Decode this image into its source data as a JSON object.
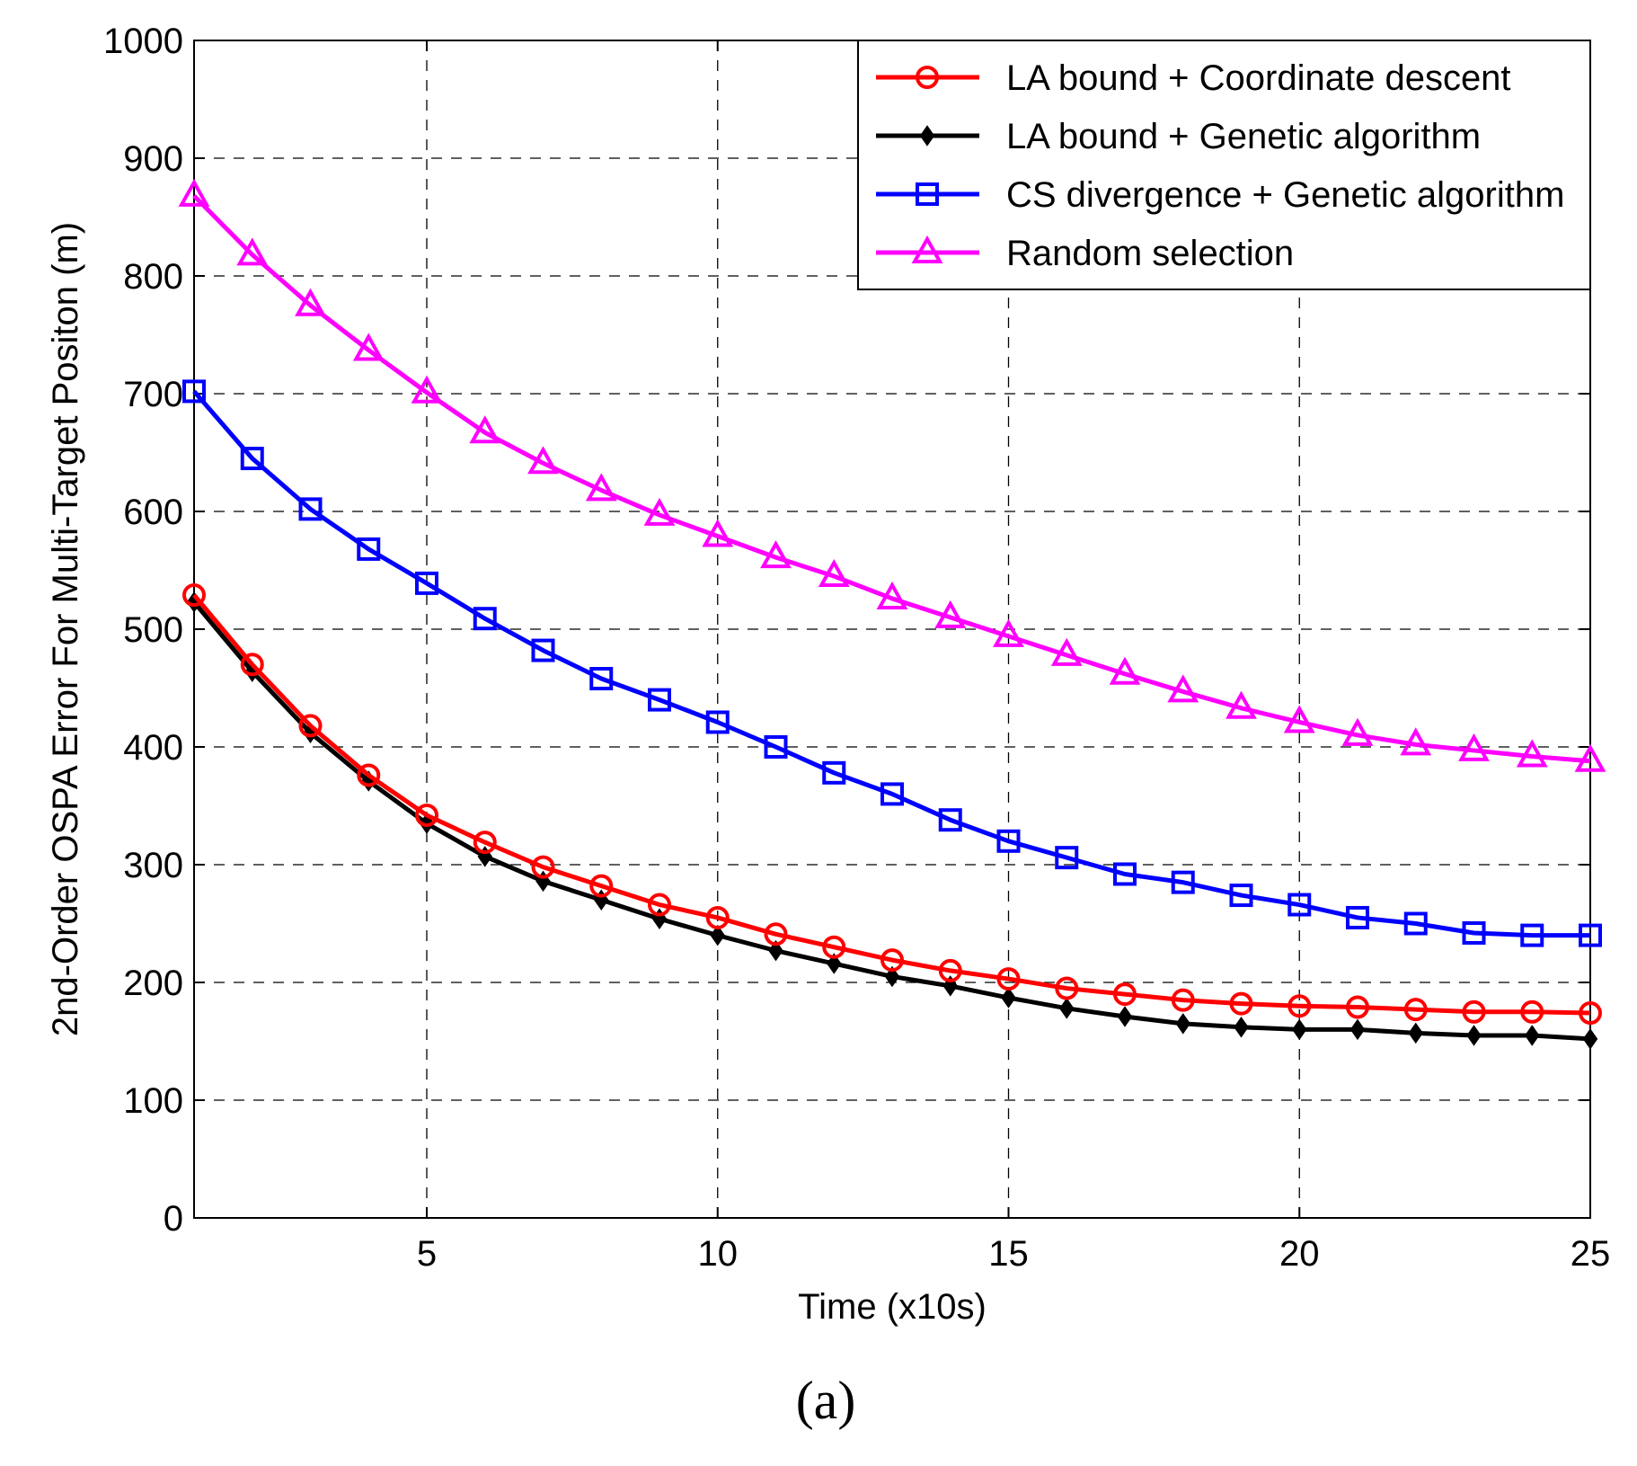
{
  "chart_data": {
    "type": "line",
    "title": "",
    "xlabel": "Time (x10s)",
    "ylabel": "2nd-Order OSPA Error For Multi-Target Positon (m)",
    "xlim": [
      1,
      25
    ],
    "ylim": [
      0,
      1000
    ],
    "xticks": [
      5,
      10,
      15,
      20,
      25
    ],
    "yticks": [
      0,
      100,
      200,
      300,
      400,
      500,
      600,
      700,
      800,
      900,
      1000
    ],
    "grid": true,
    "legend_position": "top-right",
    "x": [
      1,
      2,
      3,
      4,
      5,
      6,
      7,
      8,
      9,
      10,
      11,
      12,
      13,
      14,
      15,
      16,
      17,
      18,
      19,
      20,
      21,
      22,
      23,
      24,
      25
    ],
    "series": [
      {
        "name": "LA bound + Coordinate descent",
        "color": "#ff0000",
        "marker": "circle",
        "values": [
          529,
          470,
          418,
          376,
          342,
          319,
          298,
          282,
          266,
          255,
          241,
          230,
          219,
          210,
          203,
          195,
          190,
          185,
          182,
          180,
          179,
          177,
          175,
          175,
          174
        ]
      },
      {
        "name": "LA bound + Genetic algorithm",
        "color": "#000000",
        "marker": "diamond-filled",
        "values": [
          523,
          464,
          412,
          371,
          335,
          307,
          286,
          270,
          254,
          240,
          227,
          216,
          205,
          197,
          187,
          178,
          171,
          165,
          162,
          160,
          160,
          157,
          155,
          155,
          152
        ]
      },
      {
        "name": "CS divergence + Genetic algorithm",
        "color": "#0000ff",
        "marker": "square",
        "values": [
          702,
          645,
          602,
          568,
          539,
          509,
          482,
          458,
          440,
          421,
          400,
          378,
          360,
          338,
          320,
          306,
          292,
          285,
          274,
          266,
          255,
          250,
          242,
          240,
          240
        ]
      },
      {
        "name": "Random selection",
        "color": "#ff00ff",
        "marker": "triangle",
        "values": [
          868,
          818,
          775,
          737,
          701,
          667,
          641,
          618,
          597,
          579,
          561,
          545,
          526,
          510,
          494,
          478,
          462,
          447,
          433,
          421,
          410,
          402,
          397,
          392,
          388
        ]
      }
    ]
  },
  "panel_label": "(a)"
}
